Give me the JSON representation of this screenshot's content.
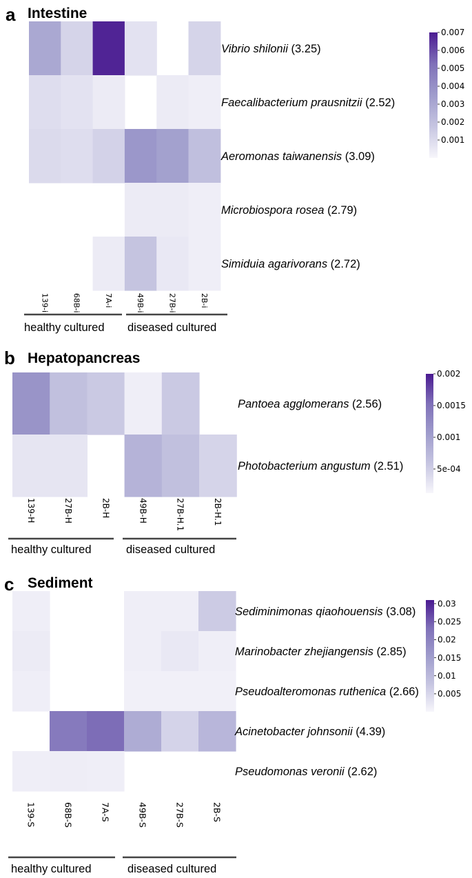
{
  "chart_data": [
    {
      "type": "heatmap",
      "panel_letter": "a",
      "title": "Intestine",
      "samples": [
        "139-i",
        "68B-i",
        "7A-i",
        "49B-i",
        "27B-i",
        "2B-i"
      ],
      "rows": [
        {
          "species": "Vibrio shilonii",
          "score": "(3.25)",
          "values": [
            0.003,
            0.0012,
            0.0068,
            0.0007,
            null,
            0.0012
          ]
        },
        {
          "species": "Faecalibacterium prausnitzii",
          "score": "(2.52)",
          "values": [
            0.0009,
            0.0007,
            0.0004,
            null,
            0.0004,
            0.0003
          ]
        },
        {
          "species": "Aeromonas taiwanensis",
          "score": "(3.09)",
          "values": [
            0.001,
            0.0009,
            0.0013,
            0.0037,
            0.0033,
            0.002
          ]
        },
        {
          "species": "Microbiospora rosea",
          "score": "(2.79)",
          "values": [
            null,
            null,
            null,
            0.0004,
            0.0004,
            0.0003
          ]
        },
        {
          "species": "Simiduia agarivorans",
          "score": "(2.72)",
          "values": [
            null,
            null,
            0.0004,
            0.0018,
            0.0005,
            0.0003
          ]
        }
      ],
      "colorbar": {
        "min": 0,
        "max": 0.007,
        "ticks": [
          "0.001",
          "0.002",
          "0.003",
          "0.004",
          "0.005",
          "0.006",
          "0.007"
        ]
      },
      "groups": [
        "healthy cultured",
        "diseased cultured"
      ]
    },
    {
      "type": "heatmap",
      "panel_letter": "b",
      "title": "Hepatopancreas",
      "samples": [
        "139-H",
        "27B-H",
        "2B-H",
        "49B-H",
        "27B-H.1",
        "2B-H.1"
      ],
      "rows": [
        {
          "species": "Pantoea agglomerans",
          "score": "(2.56)",
          "values": [
            0.00115,
            0.00065,
            0.00055,
            0.0002,
            0.00055,
            null
          ]
        },
        {
          "species": "Photobacterium angustum",
          "score": "(2.51)",
          "values": [
            0.00028,
            0.00028,
            null,
            0.0008,
            0.00065,
            0.00045
          ]
        }
      ],
      "colorbar": {
        "min": 0.00012,
        "max": 0.002,
        "ticks": [
          "5e-04",
          "0.001",
          "0.0015",
          "0.002"
        ]
      },
      "groups": [
        "healthy cultured",
        "diseased cultured"
      ]
    },
    {
      "type": "heatmap",
      "panel_letter": "c",
      "title": "Sediment",
      "samples": [
        "139-S",
        "68B-S",
        "7A-S",
        "49B-S",
        "27B-S",
        "2B-S"
      ],
      "rows": [
        {
          "species": "Sediminimonas qiaohouensis",
          "score": "(3.08)",
          "values": [
            0.0012,
            null,
            null,
            0.0012,
            0.0012,
            0.0068
          ]
        },
        {
          "species": "Marinobacter zhejiangensis",
          "score": "(2.85)",
          "values": [
            0.0018,
            null,
            null,
            0.0012,
            0.0022,
            0.0012
          ]
        },
        {
          "species": "Pseudoalteromonas ruthenica",
          "score": "(2.66)",
          "values": [
            0.0012,
            null,
            null,
            0.0009,
            0.0009,
            0.0009
          ]
        },
        {
          "species": "Acinetobacter johnsonii",
          "score": "(4.39)",
          "values": [
            null,
            0.0215,
            0.0235,
            0.0125,
            0.0055,
            0.0105
          ]
        },
        {
          "species": "Pseudomonas veronii",
          "score": "(2.62)",
          "values": [
            0.0012,
            0.0015,
            0.0012,
            null,
            null,
            null
          ]
        }
      ],
      "colorbar": {
        "min": 0,
        "max": 0.031,
        "ticks": [
          "0.005",
          "0.01",
          "0.015",
          "0.02",
          "0.025",
          "0.03"
        ]
      },
      "groups": [
        "healthy cultured",
        "diseased cultured"
      ]
    }
  ]
}
